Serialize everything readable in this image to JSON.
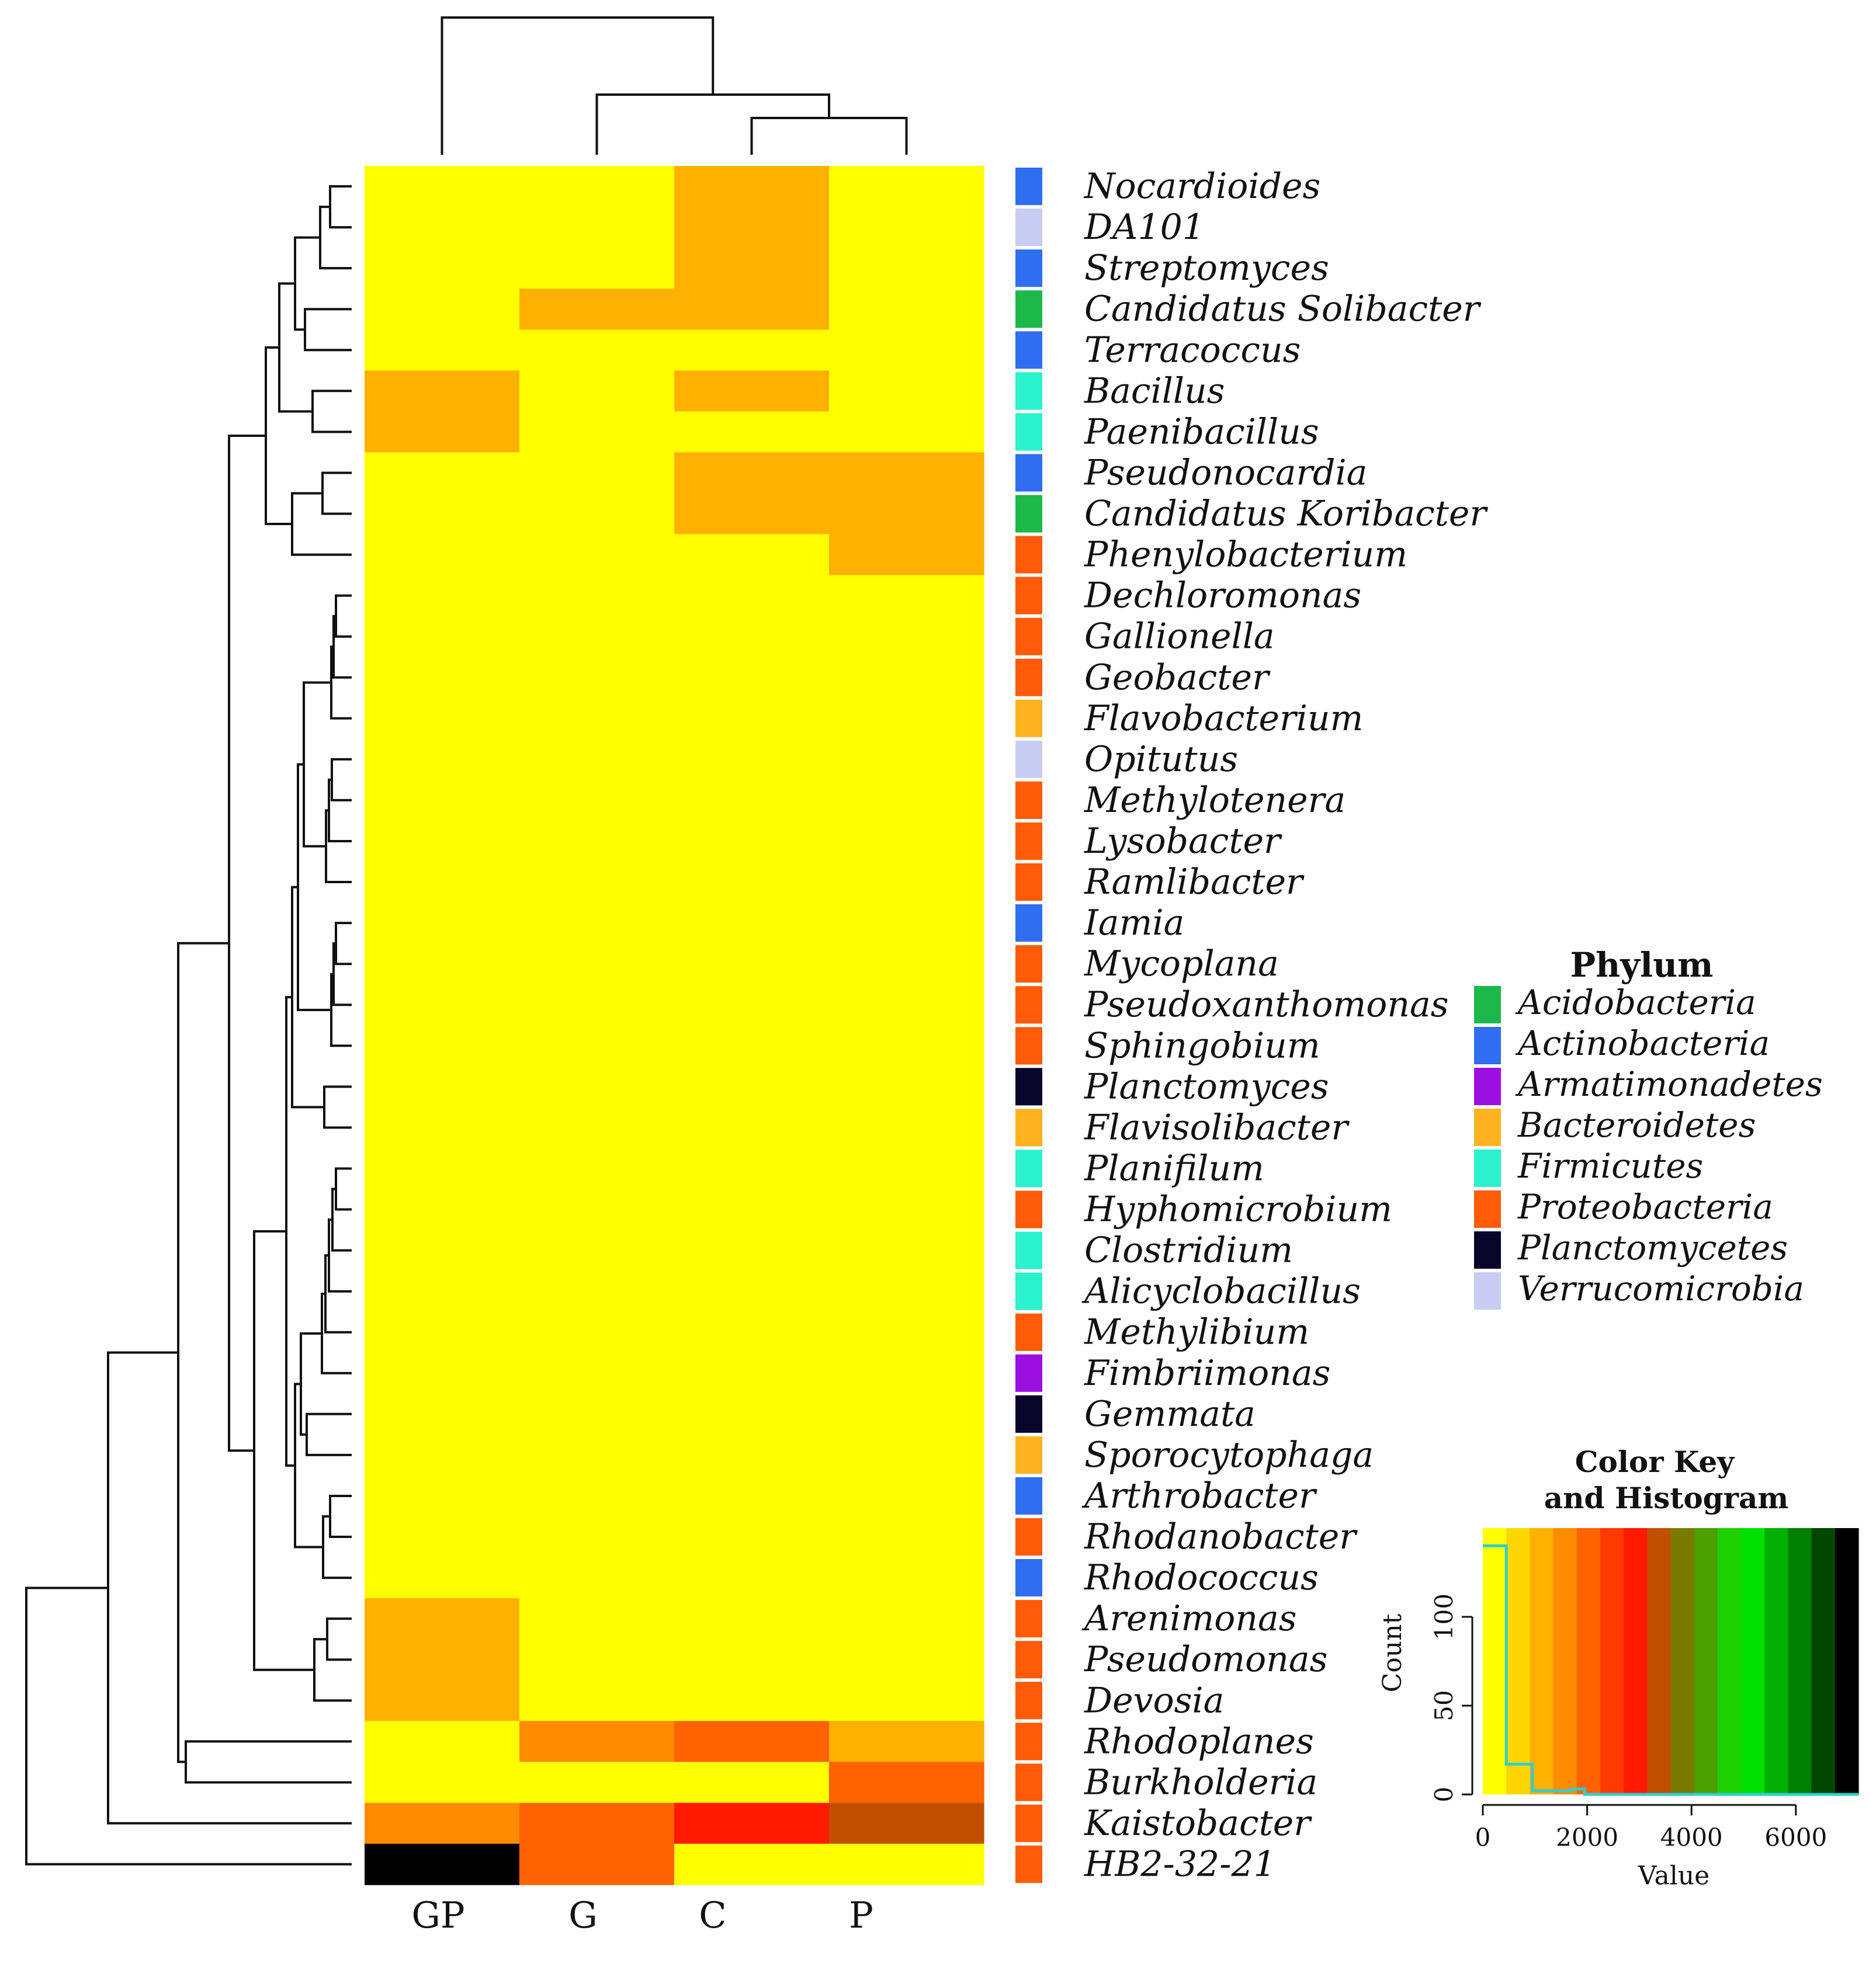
{
  "colors": {
    "scale": [
      "#ffff00",
      "#ffd700",
      "#ffb000",
      "#ff8c00",
      "#ff6200",
      "#ff3a00",
      "#ff1a00",
      "#c05000",
      "#7a7a00",
      "#4ca000",
      "#1fd000",
      "#00e000",
      "#00b000",
      "#008000",
      "#004800",
      "#000000"
    ],
    "phylum": {
      "Acidobacteria": "#1db84a",
      "Actinobacteria": "#2f6ef0",
      "Armatimonadetes": "#9b10e0",
      "Bacteroidetes": "#ffb21f",
      "Firmicutes": "#2af2cc",
      "Proteobacteria": "#ff5a08",
      "Planctomycetes": "#06062a",
      "Verrucomicrobia": "#c8ccf2"
    },
    "hist_line": "#2fd0d0"
  },
  "chart_data": {
    "type": "heatmap",
    "columns": [
      "GP",
      "G",
      "C",
      "P"
    ],
    "rows": [
      {
        "name": "Nocardioides",
        "phylum": "Actinobacteria",
        "levels": [
          0,
          0,
          2,
          0
        ]
      },
      {
        "name": "DA101",
        "phylum": "Verrucomicrobia",
        "levels": [
          0,
          0,
          2,
          0
        ]
      },
      {
        "name": "Streptomyces",
        "phylum": "Actinobacteria",
        "levels": [
          0,
          0,
          2,
          0
        ]
      },
      {
        "name": "Candidatus Solibacter",
        "phylum": "Acidobacteria",
        "levels": [
          0,
          2,
          2,
          0
        ]
      },
      {
        "name": "Terracoccus",
        "phylum": "Actinobacteria",
        "levels": [
          0,
          0,
          0,
          0
        ]
      },
      {
        "name": "Bacillus",
        "phylum": "Firmicutes",
        "levels": [
          2,
          0,
          2,
          0
        ]
      },
      {
        "name": "Paenibacillus",
        "phylum": "Firmicutes",
        "levels": [
          2,
          0,
          0,
          0
        ]
      },
      {
        "name": "Pseudonocardia",
        "phylum": "Actinobacteria",
        "levels": [
          0,
          0,
          2,
          2
        ]
      },
      {
        "name": "Candidatus Koribacter",
        "phylum": "Acidobacteria",
        "levels": [
          0,
          0,
          2,
          2
        ]
      },
      {
        "name": "Phenylobacterium",
        "phylum": "Proteobacteria",
        "levels": [
          0,
          0,
          0,
          2
        ]
      },
      {
        "name": "Dechloromonas",
        "phylum": "Proteobacteria",
        "levels": [
          0,
          0,
          0,
          0
        ]
      },
      {
        "name": "Gallionella",
        "phylum": "Proteobacteria",
        "levels": [
          0,
          0,
          0,
          0
        ]
      },
      {
        "name": "Geobacter",
        "phylum": "Proteobacteria",
        "levels": [
          0,
          0,
          0,
          0
        ]
      },
      {
        "name": "Flavobacterium",
        "phylum": "Bacteroidetes",
        "levels": [
          0,
          0,
          0,
          0
        ]
      },
      {
        "name": "Opitutus",
        "phylum": "Verrucomicrobia",
        "levels": [
          0,
          0,
          0,
          0
        ]
      },
      {
        "name": "Methylotenera",
        "phylum": "Proteobacteria",
        "levels": [
          0,
          0,
          0,
          0
        ]
      },
      {
        "name": "Lysobacter",
        "phylum": "Proteobacteria",
        "levels": [
          0,
          0,
          0,
          0
        ]
      },
      {
        "name": "Ramlibacter",
        "phylum": "Proteobacteria",
        "levels": [
          0,
          0,
          0,
          0
        ]
      },
      {
        "name": "Iamia",
        "phylum": "Actinobacteria",
        "levels": [
          0,
          0,
          0,
          0
        ]
      },
      {
        "name": "Mycoplana",
        "phylum": "Proteobacteria",
        "levels": [
          0,
          0,
          0,
          0
        ]
      },
      {
        "name": "Pseudoxanthomonas",
        "phylum": "Proteobacteria",
        "levels": [
          0,
          0,
          0,
          0
        ]
      },
      {
        "name": "Sphingobium",
        "phylum": "Proteobacteria",
        "levels": [
          0,
          0,
          0,
          0
        ]
      },
      {
        "name": "Planctomyces",
        "phylum": "Planctomycetes",
        "levels": [
          0,
          0,
          0,
          0
        ]
      },
      {
        "name": "Flavisolibacter",
        "phylum": "Bacteroidetes",
        "levels": [
          0,
          0,
          0,
          0
        ]
      },
      {
        "name": "Planifilum",
        "phylum": "Firmicutes",
        "levels": [
          0,
          0,
          0,
          0
        ]
      },
      {
        "name": "Hyphomicrobium",
        "phylum": "Proteobacteria",
        "levels": [
          0,
          0,
          0,
          0
        ]
      },
      {
        "name": "Clostridium",
        "phylum": "Firmicutes",
        "levels": [
          0,
          0,
          0,
          0
        ]
      },
      {
        "name": "Alicyclobacillus",
        "phylum": "Firmicutes",
        "levels": [
          0,
          0,
          0,
          0
        ]
      },
      {
        "name": "Methylibium",
        "phylum": "Proteobacteria",
        "levels": [
          0,
          0,
          0,
          0
        ]
      },
      {
        "name": "Fimbriimonas",
        "phylum": "Armatimonadetes",
        "levels": [
          0,
          0,
          0,
          0
        ]
      },
      {
        "name": "Gemmata",
        "phylum": "Planctomycetes",
        "levels": [
          0,
          0,
          0,
          0
        ]
      },
      {
        "name": "Sporocytophaga",
        "phylum": "Bacteroidetes",
        "levels": [
          0,
          0,
          0,
          0
        ]
      },
      {
        "name": "Arthrobacter",
        "phylum": "Actinobacteria",
        "levels": [
          0,
          0,
          0,
          0
        ]
      },
      {
        "name": "Rhodanobacter",
        "phylum": "Proteobacteria",
        "levels": [
          0,
          0,
          0,
          0
        ]
      },
      {
        "name": "Rhodococcus",
        "phylum": "Actinobacteria",
        "levels": [
          0,
          0,
          0,
          0
        ]
      },
      {
        "name": "Arenimonas",
        "phylum": "Proteobacteria",
        "levels": [
          2,
          0,
          0,
          0
        ]
      },
      {
        "name": "Pseudomonas",
        "phylum": "Proteobacteria",
        "levels": [
          2,
          0,
          0,
          0
        ]
      },
      {
        "name": "Devosia",
        "phylum": "Proteobacteria",
        "levels": [
          2,
          0,
          0,
          0
        ]
      },
      {
        "name": "Rhodoplanes",
        "phylum": "Proteobacteria",
        "levels": [
          0,
          3,
          4,
          2
        ]
      },
      {
        "name": "Burkholderia",
        "phylum": "Proteobacteria",
        "levels": [
          0,
          0,
          0,
          4
        ]
      },
      {
        "name": "Kaistobacter",
        "phylum": "Proteobacteria",
        "levels": [
          3,
          4,
          6,
          7
        ]
      },
      {
        "name": "HB2-32-21",
        "phylum": "Proteobacteria",
        "levels": [
          15,
          4,
          0,
          0
        ]
      }
    ],
    "phylum_legend": {
      "title": "Phylum",
      "items": [
        "Acidobacteria",
        "Actinobacteria",
        "Armatimonadetes",
        "Bacteroidetes",
        "Firmicutes",
        "Proteobacteria",
        "Planctomycetes",
        "Verrucomicrobia"
      ]
    },
    "color_key": {
      "title_line1": "Color Key",
      "title_line2": "and Histogram",
      "value_range": [
        0,
        7200
      ],
      "count_range": [
        0,
        150
      ],
      "x_ticks": [
        0,
        2000,
        4000,
        6000
      ],
      "x_tick_labels": [
        "0",
        "2000",
        "4000",
        "6000"
      ],
      "y_ticks": [
        0,
        50,
        100
      ],
      "y_tick_labels": [
        "0",
        "50",
        "100"
      ],
      "xlabel": "Value",
      "ylabel": "Count",
      "histogram_steps": [
        [
          0,
          140
        ],
        [
          450,
          17
        ],
        [
          950,
          2
        ],
        [
          1700,
          3
        ],
        [
          1950,
          0
        ],
        [
          7200,
          0
        ]
      ]
    }
  }
}
